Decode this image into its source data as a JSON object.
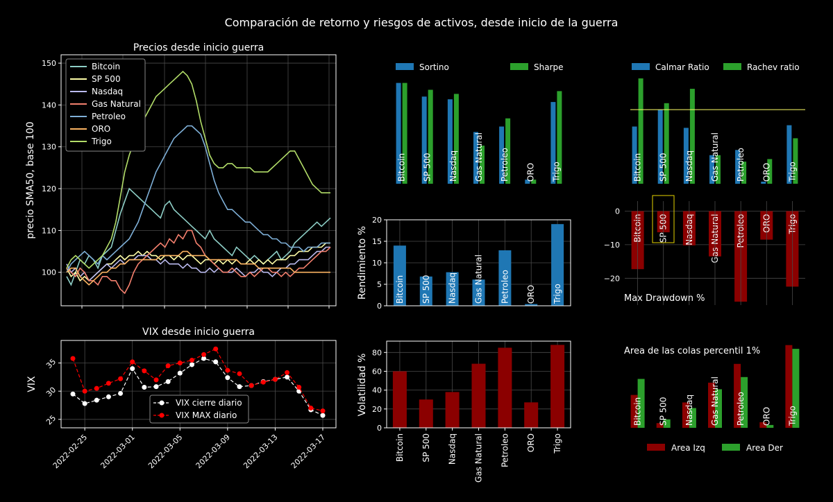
{
  "suptitle": "Comparación de retorno y riesgos de activos, desde inicio de la guerra",
  "chart_data": [
    {
      "id": "prices",
      "type": "line",
      "title": "Precios desde inicio guerra",
      "ylabel": "precio SMA50, base 100",
      "ylim": [
        92,
        152
      ],
      "yticks": [
        100,
        110,
        120,
        130,
        140,
        150
      ],
      "ytick_labels": [
        "100",
        "110",
        "120",
        "130",
        "140",
        "150"
      ],
      "x_count": 60,
      "series": [
        {
          "name": "Bitcoin",
          "color": "#8ecfc7",
          "values": [
            99,
            97,
            100,
            103,
            102,
            104,
            103,
            101,
            104,
            105,
            106,
            110,
            114,
            117,
            120,
            119,
            118,
            117,
            116,
            115,
            114,
            113,
            116,
            117,
            115,
            114,
            113,
            112,
            111,
            110,
            109,
            108,
            110,
            108,
            107,
            106,
            105,
            104,
            106,
            105,
            104,
            103,
            104,
            103,
            102,
            103,
            104,
            105,
            103,
            104,
            105,
            107,
            108,
            109,
            110,
            111,
            112,
            111,
            112,
            113
          ]
        },
        {
          "name": "SP 500",
          "color": "#ffffa8",
          "values": [
            101,
            99,
            100,
            98,
            99,
            98,
            99,
            100,
            101,
            102,
            102,
            103,
            104,
            103,
            104,
            104,
            105,
            104,
            105,
            104,
            104,
            103,
            104,
            104,
            103,
            104,
            103,
            104,
            104,
            103,
            102,
            103,
            103,
            102,
            103,
            102,
            103,
            102,
            103,
            102,
            102,
            103,
            102,
            103,
            102,
            103,
            102,
            103,
            103,
            103,
            104,
            104,
            105,
            105,
            105,
            106,
            106,
            106,
            107,
            107
          ]
        },
        {
          "name": "Nasdaq",
          "color": "#bbbbf0",
          "values": [
            102,
            100,
            101,
            99,
            100,
            98,
            99,
            100,
            101,
            102,
            101,
            102,
            103,
            102,
            103,
            103,
            104,
            104,
            104,
            103,
            103,
            102,
            103,
            102,
            102,
            102,
            101,
            102,
            101,
            101,
            100,
            100,
            101,
            100,
            101,
            100,
            100,
            100,
            101,
            100,
            99,
            100,
            100,
            101,
            100,
            100,
            99,
            100,
            101,
            101,
            102,
            102,
            103,
            103,
            103,
            104,
            105,
            105,
            106,
            106
          ]
        },
        {
          "name": "Gas Natural",
          "color": "#f4806e",
          "values": [
            101,
            100,
            99,
            101,
            100,
            98,
            98,
            97,
            99,
            99,
            98,
            98,
            96,
            95,
            97,
            100,
            102,
            103,
            104,
            105,
            106,
            107,
            106,
            108,
            107,
            109,
            108,
            110,
            110,
            107,
            106,
            104,
            103,
            102,
            101,
            100,
            100,
            101,
            100,
            99,
            99,
            100,
            99,
            100,
            101,
            101,
            100,
            100,
            99,
            100,
            99,
            100,
            101,
            101,
            102,
            103,
            104,
            105,
            105,
            106
          ]
        },
        {
          "name": "Petroleo",
          "color": "#7fb0d8",
          "values": [
            100,
            102,
            103,
            104,
            105,
            104,
            103,
            102,
            104,
            103,
            104,
            105,
            106,
            107,
            108,
            110,
            112,
            115,
            118,
            121,
            124,
            126,
            128,
            130,
            132,
            133,
            134,
            135,
            135,
            134,
            133,
            130,
            126,
            122,
            119,
            117,
            115,
            115,
            114,
            113,
            112,
            112,
            111,
            110,
            109,
            109,
            108,
            108,
            107,
            107,
            106,
            106,
            106,
            105,
            106,
            106,
            106,
            107,
            107,
            107
          ]
        },
        {
          "name": "ORO",
          "color": "#fcb462",
          "values": [
            100,
            101,
            101,
            99,
            98,
            97,
            98,
            99,
            100,
            100,
            101,
            101,
            102,
            102,
            103,
            103,
            103,
            103,
            103,
            103,
            103,
            104,
            104,
            104,
            104,
            104,
            105,
            105,
            104,
            104,
            104,
            104,
            103,
            103,
            103,
            103,
            103,
            103,
            103,
            102,
            102,
            102,
            102,
            101,
            101,
            101,
            101,
            101,
            101,
            101,
            101,
            100,
            100,
            100,
            100,
            100,
            100,
            100,
            100,
            100
          ]
        },
        {
          "name": "Trigo",
          "color": "#b3de69",
          "values": [
            101,
            103,
            104,
            103,
            102,
            101,
            102,
            103,
            104,
            106,
            108,
            112,
            118,
            124,
            128,
            131,
            133,
            136,
            138,
            140,
            142,
            143,
            144,
            145,
            146,
            147,
            148,
            147,
            145,
            141,
            136,
            132,
            128,
            126,
            125,
            125,
            126,
            126,
            125,
            125,
            125,
            125,
            124,
            124,
            124,
            124,
            125,
            126,
            127,
            128,
            129,
            129,
            127,
            125,
            123,
            121,
            120,
            119,
            119,
            119
          ]
        }
      ]
    },
    {
      "id": "vix",
      "type": "line",
      "title": "VIX desde inicio guerra",
      "ylabel": "VIX",
      "ylim": [
        23.5,
        39
      ],
      "yticks": [
        25,
        30,
        35
      ],
      "ytick_labels": [
        "25",
        "30",
        "35"
      ],
      "x": [
        "2022-02-24",
        "2022-02-25",
        "2022-02-26",
        "2022-02-27",
        "2022-02-28",
        "2022-03-01",
        "2022-03-02",
        "2022-03-03",
        "2022-03-04",
        "2022-03-05",
        "2022-03-06",
        "2022-03-07",
        "2022-03-08",
        "2022-03-09",
        "2022-03-10",
        "2022-03-11",
        "2022-03-12",
        "2022-03-13",
        "2022-03-14",
        "2022-03-15",
        "2022-03-16",
        "2022-03-17"
      ],
      "xtick_labels": [
        "2022-02-25",
        "2022-03-01",
        "2022-03-05",
        "2022-03-09",
        "2022-03-13",
        "2022-03-17"
      ],
      "xtick_index": [
        1,
        5,
        9,
        13,
        17,
        21
      ],
      "series": [
        {
          "name": "VIX cierre diario",
          "color": "#ffffff",
          "values": [
            29.5,
            27.8,
            28.4,
            29.0,
            29.6,
            34.0,
            30.7,
            30.8,
            31.7,
            33.2,
            34.7,
            35.8,
            35.2,
            32.4,
            30.8,
            31.0,
            31.7,
            32.1,
            32.5,
            30.0,
            26.7,
            25.7
          ]
        },
        {
          "name": "VIX MAX diario",
          "color": "#ff0000",
          "values": [
            35.8,
            30.0,
            30.5,
            31.4,
            32.2,
            35.2,
            33.6,
            32.0,
            34.5,
            35.0,
            35.5,
            36.5,
            37.5,
            33.7,
            33.1,
            31.0,
            31.6,
            32.1,
            33.3,
            30.7,
            27.0,
            26.5
          ]
        }
      ]
    },
    {
      "id": "sortino_sharpe",
      "type": "bar",
      "categories": [
        "Bitcoin",
        "SP 500",
        "Nasdaq",
        "Gas Natural",
        "Petroleo",
        "ORO",
        "Trigo"
      ],
      "series": [
        {
          "name": "Sortino",
          "color": "#1f77b4",
          "values": [
            3.7,
            3.2,
            3.1,
            1.9,
            2.1,
            0.15,
            3.0
          ]
        },
        {
          "name": "Sharpe",
          "color": "#2ca02c",
          "values": [
            3.7,
            3.45,
            3.3,
            1.4,
            2.4,
            0.15,
            3.4
          ]
        }
      ],
      "ylim": [
        0,
        4.2
      ]
    },
    {
      "id": "calmar_rachev",
      "type": "bar",
      "categories": [
        "Bitcoin",
        "SP 500",
        "Nasdaq",
        "Gas Natural",
        "Petroleo",
        "ORO",
        "Trigo"
      ],
      "series": [
        {
          "name": "Calmar Ratio",
          "color": "#1f77b4",
          "values": [
            2.2,
            2.85,
            2.15,
            1.1,
            1.3,
            0.08,
            2.25
          ]
        },
        {
          "name": "Rachev ratio",
          "color": "#2ca02c",
          "values": [
            4.05,
            3.1,
            3.65,
            1.1,
            0.85,
            0.95,
            1.75
          ]
        }
      ],
      "ylim": [
        0,
        4.4
      ],
      "hline": 2.85
    },
    {
      "id": "rendimiento",
      "type": "bar",
      "ylabel": "Rendimiento %",
      "categories": [
        "Bitcoin",
        "SP 500",
        "Nasdaq",
        "Gas Natural",
        "Petroleo",
        "ORO",
        "Trigo"
      ],
      "series": [
        {
          "name": "Rendimiento",
          "color": "#1f77b4",
          "values": [
            14,
            6.8,
            7.8,
            6.1,
            12.9,
            0.4,
            19
          ]
        }
      ],
      "ylim": [
        0,
        20
      ],
      "yticks": [
        0,
        5,
        10,
        15,
        20
      ],
      "ytick_labels": [
        "0",
        "5",
        "10",
        "15",
        "20"
      ]
    },
    {
      "id": "drawdown",
      "type": "bar",
      "title": "Max Drawdown %",
      "categories": [
        "Bitcoin",
        "SP 500",
        "Nasdaq",
        "Gas Natural",
        "Petroleo",
        "ORO",
        "Trigo"
      ],
      "series": [
        {
          "name": "Max Drawdown",
          "color": "#8b0000",
          "values": [
            -17.3,
            -6.3,
            -10.2,
            -13.5,
            -27,
            -8.5,
            -22.5
          ]
        }
      ],
      "ylim": [
        -28,
        3
      ],
      "yticks": [
        0,
        -10,
        -20
      ],
      "ytick_labels": [
        "0",
        "−10",
        "−20"
      ]
    },
    {
      "id": "volatilidad",
      "type": "bar",
      "ylabel": "Volatilidad %",
      "categories": [
        "Bitcoin",
        "SP 500",
        "Nasdaq",
        "Gas Natural",
        "Petroleo",
        "ORO",
        "Trigo"
      ],
      "series": [
        {
          "name": "Volatilidad",
          "color": "#8b0000",
          "values": [
            60,
            30,
            38,
            68,
            85,
            27,
            88
          ]
        }
      ],
      "ylim": [
        0,
        92
      ],
      "yticks": [
        0,
        20,
        40,
        60,
        80
      ],
      "ytick_labels": [
        "0",
        "20",
        "40",
        "60",
        "80"
      ]
    },
    {
      "id": "colas",
      "type": "bar",
      "title": "Area de las colas percentil 1%",
      "categories": [
        "Bitcoin",
        "SP 500",
        "Nasdaq",
        "Gas Natural",
        "Petroleo",
        "ORO",
        "Trigo"
      ],
      "series": [
        {
          "name": "Area Izq",
          "color": "#8b0000",
          "values": [
            35,
            5,
            27,
            48,
            68,
            6,
            88
          ]
        },
        {
          "name": "Area Der",
          "color": "#2ca02c",
          "values": [
            52,
            9,
            21,
            41,
            54,
            3,
            84
          ]
        }
      ],
      "ylim": [
        0,
        90
      ]
    }
  ]
}
